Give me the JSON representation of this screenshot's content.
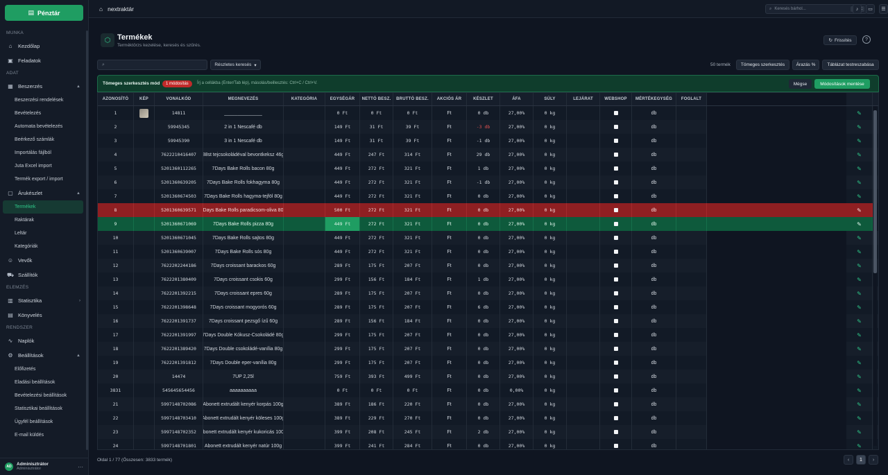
{
  "sidebar": {
    "cashier_label": "Pénztár",
    "sections": {
      "work": "MUNKA",
      "data": "ADAT",
      "analysis": "ELEMZÉS",
      "system": "RENDSZER"
    },
    "items": {
      "dashboard": "Kezdőlap",
      "tasks": "Feladatok",
      "purchase": "Beszerzés",
      "purchase_orders": "Beszerzési rendelések",
      "receiving": "Bevételezés",
      "auto_receiving": "Automata bevételezés",
      "incoming_invoices": "Beérkező számlák",
      "import_file": "Importálás fájlból",
      "juta_import": "Juta Excel import",
      "product_export": "Termék export / import",
      "stock": "Árukészlet",
      "products": "Termékek",
      "warehouses": "Raktárak",
      "inventory": "Leltár",
      "categories": "Kategóriák",
      "customers": "Vevők",
      "suppliers": "Szállítók",
      "statistics": "Statisztika",
      "bookkeeping": "Könyvelés",
      "logs": "Naplók",
      "settings": "Beállítások",
      "subscription": "Előfizetés",
      "sales_settings": "Eladási beállítások",
      "receiving_settings": "Bevételezési beállítások",
      "stats_settings": "Statisztikai beállítások",
      "customer_settings": "Ügyfél beállítások",
      "email": "E-mail küldés"
    },
    "user": {
      "initials": "AD",
      "name": "Adminisztrátor",
      "role": "Adminisztrátor"
    }
  },
  "topbar": {
    "app_name": "nextraktár",
    "search_placeholder": "Keresés bárhol...",
    "search_kbd": "Ctrl+K"
  },
  "header": {
    "title": "Termékek",
    "subtitle": "Terméktörzs kezelése, keresés és szűrés.",
    "refresh_label": "Frissítés"
  },
  "toolbar": {
    "advanced_search": "Részletes keresés",
    "count": "50 termék",
    "bulk_edit": "Tömeges szerkesztés",
    "pricing": "Árazás %",
    "customize": "Táblázat testreszabása"
  },
  "bulk": {
    "mode_label": "Tömeges szerkesztés mód",
    "badge": "1 módosítás",
    "hint": "Írj a cellákba (Enter/Tab lép), másolás/beillesztés: Ctrl+C / Ctrl+V.",
    "cancel": "Mégse",
    "save": "Módosítások mentése"
  },
  "table": {
    "columns": [
      "AZONOSÍTÓ",
      "KÉP",
      "VONALKÓD",
      "MEGNEVEZÉS",
      "KATEGÓRIA",
      "EGYSÉGÁR",
      "NETTÓ BESZ.",
      "BRUTTÓ BESZ.",
      "AKCIÓS ÁR",
      "KÉSZLET",
      "ÁFA",
      "SÚLY",
      "LEJÁRAT",
      "WEBSHOP",
      "MÉRTÉKEGYSÉG",
      "FOGLALT"
    ],
    "rows": [
      {
        "id": "1",
        "img": true,
        "barcode": "14811",
        "name": "______________",
        "unit_price": "0 Ft",
        "net": "0 Ft",
        "gross": "0 Ft",
        "sale": "Ft",
        "stock": "0 db",
        "vat": "27,00%",
        "weight": "0 kg",
        "unit": "db"
      },
      {
        "id": "2",
        "img": false,
        "barcode": "59945345",
        "name": "2 in 1 Nescafé db",
        "unit_price": "149 Ft",
        "net": "31 Ft",
        "gross": "39 Ft",
        "sale": "Ft",
        "stock": "-3 db",
        "neg": true,
        "vat": "27,00%",
        "weight": "0 kg",
        "unit": "db"
      },
      {
        "id": "3",
        "img": false,
        "barcode": "59945390",
        "name": "3 in 1 Nescafé db",
        "unit_price": "149 Ft",
        "net": "31 Ft",
        "gross": "39 Ft",
        "sale": "Ft",
        "stock": "-1 db",
        "vat": "27,00%",
        "weight": "0 kg",
        "unit": "db"
      },
      {
        "id": "4",
        "img": false,
        "barcode": "7622210416407",
        "name": "38st tejcsokoládéval bevontkeksz 46g",
        "unit_price": "449 Ft",
        "net": "247 Ft",
        "gross": "314 Ft",
        "sale": "Ft",
        "stock": "29 db",
        "vat": "27,00%",
        "weight": "0 kg",
        "unit": "db"
      },
      {
        "id": "5",
        "img": false,
        "barcode": "5201360112265",
        "name": "7Days Bake Rolls bacon 80g",
        "unit_price": "449 Ft",
        "net": "272 Ft",
        "gross": "321 Ft",
        "sale": "Ft",
        "stock": "1 db",
        "vat": "27,00%",
        "weight": "0 kg",
        "unit": "db"
      },
      {
        "id": "6",
        "img": false,
        "barcode": "5201360639205",
        "name": "7Days Bake Rolls fokhagyma 80g",
        "unit_price": "449 Ft",
        "net": "272 Ft",
        "gross": "321 Ft",
        "sale": "Ft",
        "stock": "-1 db",
        "vat": "27,00%",
        "weight": "0 kg",
        "unit": "db"
      },
      {
        "id": "7",
        "img": false,
        "barcode": "5201360674503",
        "name": "7Days Bake Rolls hagyma-tejföl 80g",
        "unit_price": "449 Ft",
        "net": "272 Ft",
        "gross": "321 Ft",
        "sale": "Ft",
        "stock": "0 db",
        "vat": "27,00%",
        "weight": "0 kg",
        "unit": "db"
      },
      {
        "id": "8",
        "img": false,
        "barcode": "5201360639571",
        "name": "7Days Bake Rolls paradicsom-oliva 80g",
        "unit_price": "500 Ft",
        "net": "272 Ft",
        "gross": "321 Ft",
        "sale": "Ft",
        "stock": "0 db",
        "vat": "27,00%",
        "weight": "0 kg",
        "unit": "db",
        "state": "red"
      },
      {
        "id": "9",
        "img": false,
        "barcode": "5201360671069",
        "name": "7Days Bake Rolls pizza 80g",
        "unit_price": "449 Ft",
        "net": "272 Ft",
        "gross": "321 Ft",
        "sale": "Ft",
        "stock": "0 db",
        "vat": "27,00%",
        "weight": "0 kg",
        "unit": "db",
        "state": "green"
      },
      {
        "id": "10",
        "img": false,
        "barcode": "5201360671045",
        "name": "7Days Bake Rolls sajtos 80g",
        "unit_price": "449 Ft",
        "net": "272 Ft",
        "gross": "321 Ft",
        "sale": "Ft",
        "stock": "0 db",
        "vat": "27,00%",
        "weight": "0 kg",
        "unit": "db"
      },
      {
        "id": "11",
        "img": false,
        "barcode": "5201360639007",
        "name": "7Days Bake Rolls sós 80g",
        "unit_price": "449 Ft",
        "net": "272 Ft",
        "gross": "321 Ft",
        "sale": "Ft",
        "stock": "0 db",
        "vat": "27,00%",
        "weight": "0 kg",
        "unit": "db"
      },
      {
        "id": "12",
        "img": false,
        "barcode": "7622202244186",
        "name": "7Days croissant barackos 60g",
        "unit_price": "289 Ft",
        "net": "175 Ft",
        "gross": "207 Ft",
        "sale": "Ft",
        "stock": "0 db",
        "vat": "27,00%",
        "weight": "0 kg",
        "unit": "db"
      },
      {
        "id": "13",
        "img": false,
        "barcode": "7622201380409",
        "name": "7Days croissant csokis 60g",
        "unit_price": "299 Ft",
        "net": "156 Ft",
        "gross": "184 Ft",
        "sale": "Ft",
        "stock": "1 db",
        "vat": "27,00%",
        "weight": "0 kg",
        "unit": "db"
      },
      {
        "id": "14",
        "img": false,
        "barcode": "7622201392215",
        "name": "7Days croissant epres 60g",
        "unit_price": "289 Ft",
        "net": "175 Ft",
        "gross": "207 Ft",
        "sale": "Ft",
        "stock": "0 db",
        "vat": "27,00%",
        "weight": "0 kg",
        "unit": "db"
      },
      {
        "id": "15",
        "img": false,
        "barcode": "7622201398648",
        "name": "7Days croissant mogyorós 60g",
        "unit_price": "289 Ft",
        "net": "175 Ft",
        "gross": "207 Ft",
        "sale": "Ft",
        "stock": "6 db",
        "vat": "27,00%",
        "weight": "0 kg",
        "unit": "db"
      },
      {
        "id": "16",
        "img": false,
        "barcode": "7622201391737",
        "name": "7Days croissant pezsgő ízű 60g",
        "unit_price": "289 Ft",
        "net": "156 Ft",
        "gross": "184 Ft",
        "sale": "Ft",
        "stock": "0 db",
        "vat": "27,00%",
        "weight": "0 kg",
        "unit": "db"
      },
      {
        "id": "17",
        "img": false,
        "barcode": "7622201391997",
        "name": "7Days Double Kókusz-Csokoládé 80g",
        "unit_price": "299 Ft",
        "net": "175 Ft",
        "gross": "207 Ft",
        "sale": "Ft",
        "stock": "0 db",
        "vat": "27,00%",
        "weight": "0 kg",
        "unit": "db"
      },
      {
        "id": "18",
        "img": false,
        "barcode": "7622201389420",
        "name": "7Days Double csokoládé-vanília 80g",
        "unit_price": "299 Ft",
        "net": "175 Ft",
        "gross": "207 Ft",
        "sale": "Ft",
        "stock": "0 db",
        "vat": "27,00%",
        "weight": "0 kg",
        "unit": "db"
      },
      {
        "id": "19",
        "img": false,
        "barcode": "7622201391812",
        "name": "7Days Double eper-vanília 80g",
        "unit_price": "299 Ft",
        "net": "175 Ft",
        "gross": "207 Ft",
        "sale": "Ft",
        "stock": "0 db",
        "vat": "27,00%",
        "weight": "0 kg",
        "unit": "db"
      },
      {
        "id": "20",
        "img": false,
        "barcode": "14474",
        "name": "7UP 2,25l",
        "unit_price": "759 Ft",
        "net": "393 Ft",
        "gross": "499 Ft",
        "sale": "Ft",
        "stock": "0 db",
        "vat": "27,00%",
        "weight": "0 kg",
        "unit": "db"
      },
      {
        "id": "3831",
        "img": false,
        "barcode": "545645654456",
        "name": "aaaaaaaaaa",
        "unit_price": "0 Ft",
        "net": "0 Ft",
        "gross": "0 Ft",
        "sale": "Ft",
        "stock": "0 db",
        "vat": "0,00%",
        "weight": "0 kg",
        "unit": "db"
      },
      {
        "id": "21",
        "img": false,
        "barcode": "5997148702086",
        "name": "Abonett extrudált kenyér korpás 100g",
        "unit_price": "389 Ft",
        "net": "186 Ft",
        "gross": "220 Ft",
        "sale": "Ft",
        "stock": "0 db",
        "vat": "27,00%",
        "weight": "0 kg",
        "unit": "db"
      },
      {
        "id": "22",
        "img": false,
        "barcode": "5997148703410",
        "name": "Abonett extrudált kenyér köleses 100g",
        "unit_price": "389 Ft",
        "net": "229 Ft",
        "gross": "270 Ft",
        "sale": "Ft",
        "stock": "0 db",
        "vat": "27,00%",
        "weight": "0 kg",
        "unit": "db"
      },
      {
        "id": "23",
        "img": false,
        "barcode": "5997148702352",
        "name": "Abonett extrudált kenyér kukoricás 100g",
        "unit_price": "399 Ft",
        "net": "208 Ft",
        "gross": "245 Ft",
        "sale": "Ft",
        "stock": "2 db",
        "vat": "27,00%",
        "weight": "0 kg",
        "unit": "db"
      },
      {
        "id": "24",
        "img": false,
        "barcode": "5997148701801",
        "name": "Abonett extrudált kenyér natúr 100g",
        "unit_price": "399 Ft",
        "net": "241 Ft",
        "gross": "284 Ft",
        "sale": "Ft",
        "stock": "0 db",
        "vat": "27,00%",
        "weight": "0 kg",
        "unit": "db"
      }
    ]
  },
  "pager": {
    "info": "Oldal 1 / 77 (Összesen: 3833 termék)",
    "prev": "‹",
    "current": "1",
    "next": "›"
  }
}
